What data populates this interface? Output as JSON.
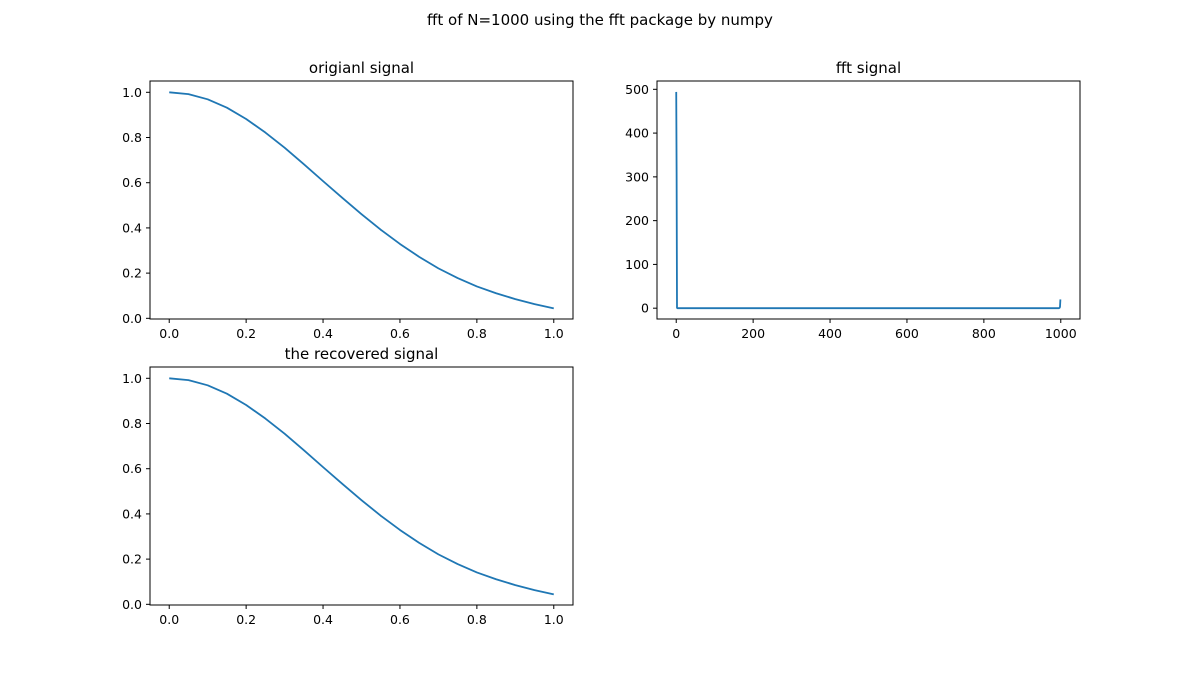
{
  "figure": {
    "suptitle": "fft of N=1000  using the fft package by numpy",
    "line_color": "#1f77b4"
  },
  "chart_data": [
    {
      "type": "line",
      "title": "origianl signal",
      "xlabel": "",
      "ylabel": "",
      "xlim": [
        -0.05,
        1.05
      ],
      "ylim": [
        -0.003,
        1.05
      ],
      "xticks": [
        0.0,
        0.2,
        0.4,
        0.6,
        0.8,
        1.0
      ],
      "xtick_labels": [
        "0.0",
        "0.2",
        "0.4",
        "0.6",
        "0.8",
        "1.0"
      ],
      "yticks": [
        0.0,
        0.2,
        0.4,
        0.6,
        0.8,
        1.0
      ],
      "ytick_labels": [
        "0.0",
        "0.2",
        "0.4",
        "0.6",
        "0.8",
        "1.0"
      ],
      "grid": false,
      "series": [
        {
          "x": [
            0.0,
            0.05,
            0.1,
            0.15,
            0.2,
            0.25,
            0.3,
            0.35,
            0.4,
            0.45,
            0.5,
            0.55,
            0.6,
            0.65,
            0.7,
            0.75,
            0.8,
            0.85,
            0.9,
            0.95,
            1.0
          ],
          "y": [
            1.0,
            0.992,
            0.969,
            0.932,
            0.882,
            0.822,
            0.755,
            0.682,
            0.607,
            0.533,
            0.461,
            0.392,
            0.329,
            0.272,
            0.221,
            0.178,
            0.141,
            0.111,
            0.085,
            0.063,
            0.044
          ]
        }
      ]
    },
    {
      "type": "line",
      "title": "fft signal",
      "xlabel": "",
      "ylabel": "",
      "xlim": [
        -50,
        1050
      ],
      "ylim": [
        -24.7,
        519
      ],
      "xticks": [
        0,
        200,
        400,
        600,
        800,
        1000
      ],
      "xtick_labels": [
        "0",
        "200",
        "400",
        "600",
        "800",
        "1000"
      ],
      "yticks": [
        0,
        100,
        200,
        300,
        400,
        500
      ],
      "ytick_labels": [
        "0",
        "100",
        "200",
        "300",
        "400",
        "500"
      ],
      "grid": false,
      "series": [
        {
          "x": [
            0,
            1,
            2,
            3,
            995,
            996,
            997,
            998,
            999
          ],
          "y": [
            494,
            310,
            1,
            0,
            0,
            0.5,
            1,
            3,
            20
          ]
        }
      ]
    },
    {
      "type": "line",
      "title": "the recovered signal",
      "xlabel": "",
      "ylabel": "",
      "xlim": [
        -0.05,
        1.05
      ],
      "ylim": [
        -0.003,
        1.05
      ],
      "xticks": [
        0.0,
        0.2,
        0.4,
        0.6,
        0.8,
        1.0
      ],
      "xtick_labels": [
        "0.0",
        "0.2",
        "0.4",
        "0.6",
        "0.8",
        "1.0"
      ],
      "yticks": [
        0.0,
        0.2,
        0.4,
        0.6,
        0.8,
        1.0
      ],
      "ytick_labels": [
        "0.0",
        "0.2",
        "0.4",
        "0.6",
        "0.8",
        "1.0"
      ],
      "grid": false,
      "series": [
        {
          "x": [
            0.0,
            0.05,
            0.1,
            0.15,
            0.2,
            0.25,
            0.3,
            0.35,
            0.4,
            0.45,
            0.5,
            0.55,
            0.6,
            0.65,
            0.7,
            0.75,
            0.8,
            0.85,
            0.9,
            0.95,
            1.0
          ],
          "y": [
            1.0,
            0.992,
            0.969,
            0.932,
            0.882,
            0.822,
            0.755,
            0.682,
            0.607,
            0.533,
            0.461,
            0.392,
            0.329,
            0.272,
            0.221,
            0.178,
            0.141,
            0.111,
            0.085,
            0.063,
            0.044
          ]
        }
      ]
    }
  ]
}
